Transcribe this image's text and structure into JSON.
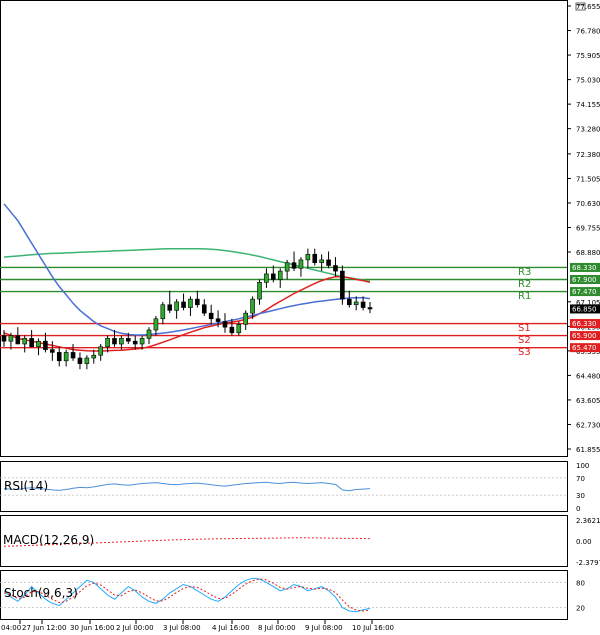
{
  "chart_data": {
    "type": "candlestick",
    "price_axis": {
      "ticks": [
        "77.655",
        "76.780",
        "75.905",
        "75.030",
        "74.155",
        "73.280",
        "72.380",
        "71.505",
        "70.630",
        "69.755",
        "68.880",
        "67.105",
        "66.230",
        "65.355",
        "64.480",
        "63.605",
        "62.730",
        "61.855"
      ],
      "tick_values": [
        77.655,
        76.78,
        75.905,
        75.03,
        74.155,
        73.28,
        72.38,
        71.505,
        70.63,
        69.755,
        68.88,
        67.105,
        66.23,
        65.355,
        64.48,
        63.605,
        62.73,
        61.855
      ],
      "range": [
        61.855,
        77.655
      ]
    },
    "time_axis": {
      "labels": [
        "04:00",
        "27 Jun 12:00",
        "30 Jun 16:00",
        "2 Jul 00:00",
        "3 Jul 08:00",
        "4 Jul 16:00",
        "8 Jul 00:00",
        "9 Jul 08:00",
        "10 Jul 16:00"
      ]
    },
    "current_price": {
      "label": "66.850",
      "value": 66.85,
      "color": "#000000"
    },
    "levels": [
      {
        "name": "R3",
        "value": 68.33,
        "price_label": "68.330",
        "color": "#2e8b2e"
      },
      {
        "name": "R2",
        "value": 67.9,
        "price_label": "67.900",
        "color": "#2e8b2e"
      },
      {
        "name": "R1",
        "value": 67.47,
        "price_label": "67.470",
        "color": "#2e8b2e"
      },
      {
        "name": "S1",
        "value": 66.33,
        "price_label": "66.330",
        "color": "#e02020"
      },
      {
        "name": "S2",
        "value": 65.9,
        "price_label": "65.900",
        "color": "#e02020"
      },
      {
        "name": "S3",
        "value": 65.47,
        "price_label": "65.470",
        "color": "#e02020"
      }
    ],
    "candles": [
      [
        65.9,
        66.1,
        65.5,
        65.7
      ],
      [
        65.7,
        66.0,
        65.4,
        65.9
      ],
      [
        65.9,
        66.2,
        65.6,
        65.6
      ],
      [
        65.6,
        65.9,
        65.3,
        65.8
      ],
      [
        65.8,
        66.1,
        65.5,
        65.5
      ],
      [
        65.5,
        65.8,
        65.2,
        65.7
      ],
      [
        65.7,
        66.0,
        65.3,
        65.4
      ],
      [
        65.4,
        65.7,
        65.0,
        65.3
      ],
      [
        65.3,
        65.5,
        64.8,
        65.0
      ],
      [
        65.0,
        65.4,
        64.8,
        65.3
      ],
      [
        65.3,
        65.6,
        65.0,
        65.1
      ],
      [
        65.1,
        65.3,
        64.7,
        64.9
      ],
      [
        64.9,
        65.2,
        64.7,
        65.1
      ],
      [
        65.1,
        65.4,
        64.9,
        65.2
      ],
      [
        65.2,
        65.6,
        65.0,
        65.5
      ],
      [
        65.5,
        65.9,
        65.3,
        65.8
      ],
      [
        65.8,
        66.1,
        65.5,
        65.6
      ],
      [
        65.6,
        65.9,
        65.4,
        65.8
      ],
      [
        65.8,
        66.0,
        65.6,
        65.7
      ],
      [
        65.7,
        65.9,
        65.4,
        65.6
      ],
      [
        65.6,
        65.9,
        65.4,
        65.8
      ],
      [
        65.8,
        66.2,
        65.6,
        66.1
      ],
      [
        66.1,
        66.6,
        65.9,
        66.5
      ],
      [
        66.5,
        67.1,
        66.3,
        67.0
      ],
      [
        67.0,
        67.5,
        66.7,
        66.8
      ],
      [
        66.8,
        67.2,
        66.5,
        67.1
      ],
      [
        67.1,
        67.4,
        66.8,
        66.9
      ],
      [
        66.9,
        67.3,
        66.6,
        67.2
      ],
      [
        67.2,
        67.5,
        66.9,
        67.0
      ],
      [
        67.0,
        67.2,
        66.6,
        66.7
      ],
      [
        66.7,
        67.0,
        66.3,
        66.5
      ],
      [
        66.5,
        66.8,
        66.2,
        66.4
      ],
      [
        66.4,
        66.7,
        66.0,
        66.2
      ],
      [
        66.2,
        66.5,
        65.9,
        66.0
      ],
      [
        66.0,
        66.4,
        65.9,
        66.3
      ],
      [
        66.3,
        66.8,
        66.1,
        66.7
      ],
      [
        66.7,
        67.3,
        66.5,
        67.2
      ],
      [
        67.2,
        67.9,
        67.0,
        67.8
      ],
      [
        67.8,
        68.3,
        67.6,
        68.1
      ],
      [
        68.1,
        68.4,
        67.8,
        67.9
      ],
      [
        67.9,
        68.3,
        67.6,
        68.2
      ],
      [
        68.2,
        68.6,
        67.9,
        68.5
      ],
      [
        68.5,
        68.9,
        68.2,
        68.3
      ],
      [
        68.3,
        68.7,
        68.0,
        68.6
      ],
      [
        68.6,
        69.0,
        68.3,
        68.8
      ],
      [
        68.8,
        69.0,
        68.4,
        68.5
      ],
      [
        68.5,
        68.8,
        68.2,
        68.6
      ],
      [
        68.6,
        68.9,
        68.3,
        68.4
      ],
      [
        68.4,
        68.7,
        68.0,
        68.2
      ],
      [
        68.2,
        68.4,
        67.0,
        67.2
      ],
      [
        67.2,
        67.5,
        66.9,
        67.0
      ],
      [
        67.0,
        67.3,
        66.8,
        67.1
      ],
      [
        67.1,
        67.3,
        66.8,
        66.9
      ],
      [
        66.9,
        67.1,
        66.7,
        66.85
      ]
    ],
    "series": [
      {
        "name": "MA long",
        "color": "#3cb371",
        "values": [
          68.7,
          68.72,
          68.74,
          68.76,
          68.78,
          68.8,
          68.82,
          68.83,
          68.84,
          68.85,
          68.86,
          68.87,
          68.88,
          68.89,
          68.9,
          68.91,
          68.92,
          68.93,
          68.94,
          68.95,
          68.96,
          68.97,
          68.98,
          68.99,
          69.0,
          69.0,
          69.0,
          69.0,
          69.0,
          68.99,
          68.98,
          68.96,
          68.93,
          68.9,
          68.86,
          68.82,
          68.77,
          68.72,
          68.66,
          68.6,
          68.54,
          68.48,
          68.42,
          68.36,
          68.3,
          68.24,
          68.18,
          68.12,
          68.06,
          68.0,
          67.96,
          67.92,
          67.88,
          67.84
        ]
      },
      {
        "name": "MA medium",
        "color": "#e02020",
        "values": [
          66.0,
          65.9,
          65.8,
          65.75,
          65.7,
          65.65,
          65.6,
          65.55,
          65.5,
          65.45,
          65.4,
          65.38,
          65.36,
          65.35,
          65.35,
          65.36,
          65.37,
          65.38,
          65.4,
          65.42,
          65.45,
          65.5,
          65.58,
          65.66,
          65.75,
          65.84,
          65.93,
          66.02,
          66.1,
          66.18,
          66.24,
          66.3,
          66.34,
          66.38,
          66.42,
          66.48,
          66.56,
          66.68,
          66.82,
          66.98,
          67.12,
          67.26,
          67.4,
          67.52,
          67.64,
          67.76,
          67.86,
          67.94,
          68.0,
          68.0,
          67.96,
          67.9,
          67.86,
          67.8
        ]
      },
      {
        "name": "MA short",
        "color": "#4a6fd6",
        "values": [
          70.6,
          70.3,
          70.0,
          69.6,
          69.2,
          68.8,
          68.4,
          68.0,
          67.65,
          67.35,
          67.05,
          66.8,
          66.6,
          66.4,
          66.25,
          66.15,
          66.05,
          65.98,
          65.94,
          65.92,
          65.92,
          65.94,
          65.96,
          65.99,
          66.02,
          66.06,
          66.1,
          66.15,
          66.2,
          66.25,
          66.3,
          66.35,
          66.4,
          66.45,
          66.5,
          66.56,
          66.62,
          66.68,
          66.74,
          66.8,
          66.86,
          66.92,
          66.97,
          67.02,
          67.06,
          67.1,
          67.13,
          67.16,
          67.19,
          67.22,
          67.24,
          67.25,
          67.25,
          67.22
        ]
      }
    ],
    "rsi": {
      "label": "RSI(14)",
      "ticks": [
        "100",
        "70",
        "30",
        "0"
      ],
      "values": [
        45,
        44,
        43,
        46,
        47,
        45,
        44,
        42,
        41,
        43,
        46,
        48,
        47,
        49,
        52,
        55,
        56,
        54,
        53,
        55,
        57,
        58,
        59,
        57,
        55,
        54,
        56,
        57,
        58,
        56,
        54,
        52,
        51,
        53,
        55,
        57,
        58,
        59,
        60,
        58,
        57,
        59,
        60,
        58,
        57,
        58,
        59,
        57,
        55,
        42,
        40,
        43,
        44,
        45
      ]
    },
    "macd": {
      "label": "MACD(12,26,9)",
      "ticks": [
        "2.3621",
        "0.00",
        "-2.3797"
      ],
      "signal_values": [
        -0.6,
        -0.58,
        -0.56,
        -0.53,
        -0.5,
        -0.47,
        -0.44,
        -0.41,
        -0.38,
        -0.35,
        -0.32,
        -0.29,
        -0.26,
        -0.23,
        -0.2,
        -0.17,
        -0.14,
        -0.11,
        -0.08,
        -0.05,
        -0.02,
        0.01,
        0.04,
        0.07,
        0.1,
        0.13,
        0.15,
        0.17,
        0.19,
        0.21,
        0.23,
        0.24,
        0.25,
        0.26,
        0.27,
        0.28,
        0.29,
        0.3,
        0.31,
        0.32,
        0.33,
        0.34,
        0.35,
        0.35,
        0.35,
        0.34,
        0.33,
        0.32,
        0.31,
        0.3,
        0.29,
        0.28,
        0.27,
        0.26
      ]
    },
    "stoch": {
      "label": "Stoch(9,6,3)",
      "ticks": [
        "80",
        "20"
      ],
      "k_values": [
        60,
        45,
        35,
        50,
        70,
        55,
        40,
        30,
        25,
        40,
        55,
        70,
        85,
        80,
        65,
        50,
        40,
        55,
        70,
        60,
        45,
        35,
        30,
        40,
        55,
        65,
        75,
        70,
        60,
        50,
        40,
        35,
        45,
        60,
        75,
        85,
        90,
        88,
        80,
        70,
        60,
        65,
        75,
        70,
        60,
        65,
        70,
        60,
        45,
        20,
        12,
        10,
        15,
        18
      ],
      "d_values": [
        55,
        50,
        42,
        45,
        58,
        58,
        50,
        40,
        32,
        35,
        45,
        58,
        72,
        78,
        74,
        62,
        50,
        48,
        58,
        62,
        55,
        45,
        36,
        36,
        45,
        56,
        66,
        70,
        68,
        60,
        50,
        42,
        42,
        52,
        64,
        76,
        84,
        88,
        86,
        78,
        68,
        64,
        68,
        70,
        66,
        64,
        66,
        64,
        56,
        38,
        22,
        14,
        12,
        14
      ]
    }
  }
}
